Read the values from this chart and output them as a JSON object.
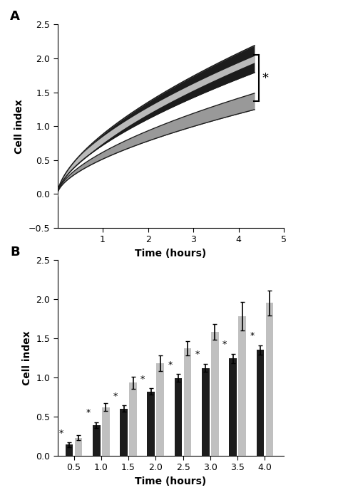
{
  "panel_A": {
    "xlabel": "Time (hours)",
    "ylabel": "Cell index",
    "xlim": [
      0,
      4.7
    ],
    "ylim": [
      -0.5,
      2.5
    ],
    "xticks": [
      1,
      2,
      3,
      4,
      5
    ],
    "yticks": [
      -0.5,
      0.0,
      0.5,
      1.0,
      1.5,
      2.0,
      2.5
    ],
    "dark_color": "#1c1c1c",
    "light_color": "#e8e8e8",
    "gray_color": "#777777",
    "gray_fill": "#999999",
    "label_A": "A",
    "significance_star": "*",
    "bracket_x": 4.45,
    "bracket_y_top": 2.05,
    "bracket_y_bot": 1.37
  },
  "panel_B": {
    "xlabel": "Time (hours)",
    "ylabel": "Cell index",
    "ylim": [
      0,
      2.5
    ],
    "yticks": [
      0.0,
      0.5,
      1.0,
      1.5,
      2.0,
      2.5
    ],
    "time_points": [
      0.5,
      1.0,
      1.5,
      2.0,
      2.5,
      3.0,
      3.5,
      4.0
    ],
    "dark_values": [
      0.14,
      0.39,
      0.6,
      0.82,
      0.99,
      1.12,
      1.24,
      1.35
    ],
    "dark_errors": [
      0.03,
      0.04,
      0.04,
      0.04,
      0.05,
      0.05,
      0.06,
      0.06
    ],
    "light_values": [
      0.23,
      0.62,
      0.93,
      1.18,
      1.37,
      1.58,
      1.78,
      1.95
    ],
    "light_errors": [
      0.03,
      0.05,
      0.08,
      0.1,
      0.09,
      0.1,
      0.18,
      0.16
    ],
    "dark_color": "#1c1c1c",
    "light_color": "#c0c0c0",
    "label_B": "B",
    "significance_star": "*"
  }
}
